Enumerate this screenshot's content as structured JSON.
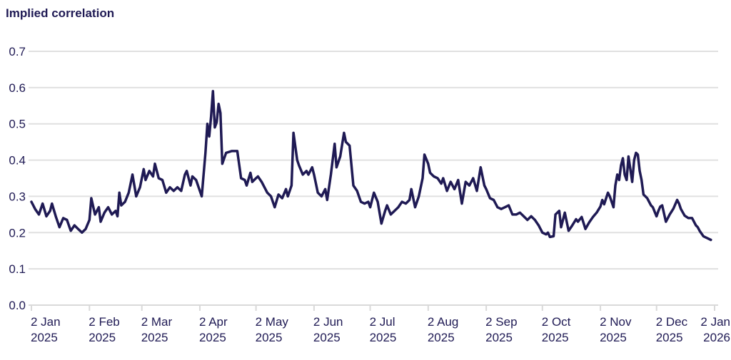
{
  "chart_data": {
    "type": "line",
    "title": "Implied correlation",
    "xlabel": "",
    "ylabel": "",
    "legend": "none",
    "grid": "horizontal-only",
    "x_unit": "days since 2 Jan 2025",
    "xlim": [
      0,
      365
    ],
    "ylim": [
      0,
      0.7
    ],
    "y_tick_labels": [
      "0.0",
      "0.1",
      "0.2",
      "0.3",
      "0.4",
      "0.5",
      "0.6",
      "0.7"
    ],
    "y_tick_values": [
      0.0,
      0.1,
      0.2,
      0.3,
      0.4,
      0.5,
      0.6,
      0.7
    ],
    "x_tick_days": [
      0,
      31,
      59,
      90,
      120,
      151,
      181,
      212,
      243,
      273,
      304,
      334,
      365
    ],
    "x_tick_labels": [
      [
        "2 Jan",
        "2025"
      ],
      [
        "2 Feb",
        "2025"
      ],
      [
        "2 Mar",
        "2025"
      ],
      [
        "2 Apr",
        "2025"
      ],
      [
        "2 May",
        "2025"
      ],
      [
        "2 Jun",
        "2025"
      ],
      [
        "2 Jul",
        "2025"
      ],
      [
        "2 Aug",
        "2025"
      ],
      [
        "2 Sep",
        "2025"
      ],
      [
        "2 Oct",
        "2025"
      ],
      [
        "2 Nov",
        "2025"
      ],
      [
        "2 Dec",
        "2025"
      ],
      [
        "2 Jan",
        "2026"
      ]
    ],
    "colors": {
      "line": "#1f1a54",
      "text": "#1f1a54",
      "gridline": "#e0e0e0",
      "axis": "#d9d9d9"
    },
    "series": [
      {
        "name": "Implied correlation",
        "points": [
          [
            0,
            0.285
          ],
          [
            2,
            0.265
          ],
          [
            4,
            0.25
          ],
          [
            6,
            0.28
          ],
          [
            8,
            0.245
          ],
          [
            10,
            0.26
          ],
          [
            11,
            0.28
          ],
          [
            13,
            0.245
          ],
          [
            15,
            0.215
          ],
          [
            17,
            0.24
          ],
          [
            19,
            0.235
          ],
          [
            21,
            0.205
          ],
          [
            23,
            0.22
          ],
          [
            25,
            0.21
          ],
          [
            27,
            0.2
          ],
          [
            29,
            0.21
          ],
          [
            31,
            0.235
          ],
          [
            32,
            0.295
          ],
          [
            34,
            0.25
          ],
          [
            36,
            0.27
          ],
          [
            37,
            0.23
          ],
          [
            39,
            0.255
          ],
          [
            41,
            0.27
          ],
          [
            43,
            0.25
          ],
          [
            45,
            0.26
          ],
          [
            46,
            0.245
          ],
          [
            47,
            0.31
          ],
          [
            48,
            0.275
          ],
          [
            50,
            0.285
          ],
          [
            52,
            0.31
          ],
          [
            54,
            0.36
          ],
          [
            55,
            0.33
          ],
          [
            56,
            0.3
          ],
          [
            58,
            0.325
          ],
          [
            60,
            0.375
          ],
          [
            61,
            0.345
          ],
          [
            63,
            0.37
          ],
          [
            65,
            0.355
          ],
          [
            66,
            0.39
          ],
          [
            68,
            0.35
          ],
          [
            70,
            0.345
          ],
          [
            72,
            0.31
          ],
          [
            74,
            0.325
          ],
          [
            76,
            0.315
          ],
          [
            78,
            0.325
          ],
          [
            80,
            0.315
          ],
          [
            82,
            0.36
          ],
          [
            83,
            0.37
          ],
          [
            85,
            0.33
          ],
          [
            86,
            0.355
          ],
          [
            88,
            0.345
          ],
          [
            91,
            0.3
          ],
          [
            93,
            0.42
          ],
          [
            94,
            0.5
          ],
          [
            95,
            0.465
          ],
          [
            96,
            0.52
          ],
          [
            97,
            0.59
          ],
          [
            98,
            0.49
          ],
          [
            99,
            0.505
          ],
          [
            100,
            0.555
          ],
          [
            101,
            0.53
          ],
          [
            102,
            0.39
          ],
          [
            104,
            0.42
          ],
          [
            107,
            0.425
          ],
          [
            110,
            0.425
          ],
          [
            112,
            0.35
          ],
          [
            114,
            0.345
          ],
          [
            115,
            0.33
          ],
          [
            117,
            0.365
          ],
          [
            118,
            0.34
          ],
          [
            120,
            0.35
          ],
          [
            121,
            0.355
          ],
          [
            123,
            0.34
          ],
          [
            126,
            0.31
          ],
          [
            128,
            0.3
          ],
          [
            130,
            0.27
          ],
          [
            132,
            0.305
          ],
          [
            134,
            0.295
          ],
          [
            136,
            0.32
          ],
          [
            137,
            0.3
          ],
          [
            139,
            0.33
          ],
          [
            140,
            0.475
          ],
          [
            142,
            0.4
          ],
          [
            143,
            0.385
          ],
          [
            145,
            0.36
          ],
          [
            147,
            0.37
          ],
          [
            148,
            0.36
          ],
          [
            150,
            0.38
          ],
          [
            151,
            0.36
          ],
          [
            153,
            0.31
          ],
          [
            155,
            0.3
          ],
          [
            157,
            0.32
          ],
          [
            158,
            0.29
          ],
          [
            160,
            0.36
          ],
          [
            162,
            0.445
          ],
          [
            163,
            0.38
          ],
          [
            165,
            0.41
          ],
          [
            167,
            0.475
          ],
          [
            168,
            0.45
          ],
          [
            170,
            0.44
          ],
          [
            172,
            0.33
          ],
          [
            174,
            0.315
          ],
          [
            176,
            0.285
          ],
          [
            178,
            0.28
          ],
          [
            180,
            0.285
          ],
          [
            181,
            0.27
          ],
          [
            183,
            0.31
          ],
          [
            185,
            0.285
          ],
          [
            187,
            0.225
          ],
          [
            189,
            0.26
          ],
          [
            190,
            0.275
          ],
          [
            192,
            0.25
          ],
          [
            194,
            0.26
          ],
          [
            196,
            0.27
          ],
          [
            198,
            0.285
          ],
          [
            200,
            0.28
          ],
          [
            202,
            0.29
          ],
          [
            203,
            0.32
          ],
          [
            205,
            0.27
          ],
          [
            207,
            0.3
          ],
          [
            209,
            0.35
          ],
          [
            210,
            0.415
          ],
          [
            212,
            0.39
          ],
          [
            213,
            0.365
          ],
          [
            215,
            0.355
          ],
          [
            217,
            0.35
          ],
          [
            219,
            0.335
          ],
          [
            220,
            0.35
          ],
          [
            222,
            0.315
          ],
          [
            224,
            0.34
          ],
          [
            226,
            0.32
          ],
          [
            228,
            0.345
          ],
          [
            230,
            0.28
          ],
          [
            232,
            0.34
          ],
          [
            234,
            0.33
          ],
          [
            236,
            0.35
          ],
          [
            238,
            0.315
          ],
          [
            240,
            0.38
          ],
          [
            242,
            0.33
          ],
          [
            243,
            0.32
          ],
          [
            245,
            0.295
          ],
          [
            247,
            0.29
          ],
          [
            249,
            0.27
          ],
          [
            251,
            0.265
          ],
          [
            253,
            0.27
          ],
          [
            255,
            0.275
          ],
          [
            257,
            0.25
          ],
          [
            259,
            0.25
          ],
          [
            261,
            0.255
          ],
          [
            263,
            0.245
          ],
          [
            265,
            0.235
          ],
          [
            267,
            0.245
          ],
          [
            269,
            0.235
          ],
          [
            271,
            0.22
          ],
          [
            273,
            0.2
          ],
          [
            275,
            0.195
          ],
          [
            276,
            0.2
          ],
          [
            277,
            0.188
          ],
          [
            279,
            0.19
          ],
          [
            280,
            0.25
          ],
          [
            282,
            0.26
          ],
          [
            283,
            0.215
          ],
          [
            285,
            0.255
          ],
          [
            287,
            0.205
          ],
          [
            289,
            0.22
          ],
          [
            291,
            0.237
          ],
          [
            292,
            0.23
          ],
          [
            294,
            0.243
          ],
          [
            296,
            0.21
          ],
          [
            298,
            0.228
          ],
          [
            300,
            0.243
          ],
          [
            302,
            0.255
          ],
          [
            304,
            0.272
          ],
          [
            305,
            0.29
          ],
          [
            306,
            0.278
          ],
          [
            308,
            0.31
          ],
          [
            309,
            0.3
          ],
          [
            311,
            0.27
          ],
          [
            312,
            0.33
          ],
          [
            313,
            0.36
          ],
          [
            314,
            0.345
          ],
          [
            315,
            0.385
          ],
          [
            316,
            0.405
          ],
          [
            317,
            0.36
          ],
          [
            318,
            0.345
          ],
          [
            319,
            0.41
          ],
          [
            320,
            0.375
          ],
          [
            321,
            0.34
          ],
          [
            322,
            0.4
          ],
          [
            323,
            0.42
          ],
          [
            324,
            0.415
          ],
          [
            325,
            0.37
          ],
          [
            326,
            0.345
          ],
          [
            327,
            0.305
          ],
          [
            328,
            0.3
          ],
          [
            329,
            0.295
          ],
          [
            331,
            0.275
          ],
          [
            332,
            0.27
          ],
          [
            334,
            0.245
          ],
          [
            335,
            0.26
          ],
          [
            336,
            0.272
          ],
          [
            337,
            0.275
          ],
          [
            339,
            0.23
          ],
          [
            340,
            0.24
          ],
          [
            341,
            0.25
          ],
          [
            343,
            0.266
          ],
          [
            345,
            0.29
          ],
          [
            346,
            0.28
          ],
          [
            347,
            0.265
          ],
          [
            349,
            0.247
          ],
          [
            351,
            0.24
          ],
          [
            353,
            0.24
          ],
          [
            355,
            0.22
          ],
          [
            356,
            0.215
          ],
          [
            357,
            0.205
          ],
          [
            359,
            0.19
          ],
          [
            361,
            0.185
          ],
          [
            363,
            0.18
          ]
        ]
      }
    ]
  }
}
